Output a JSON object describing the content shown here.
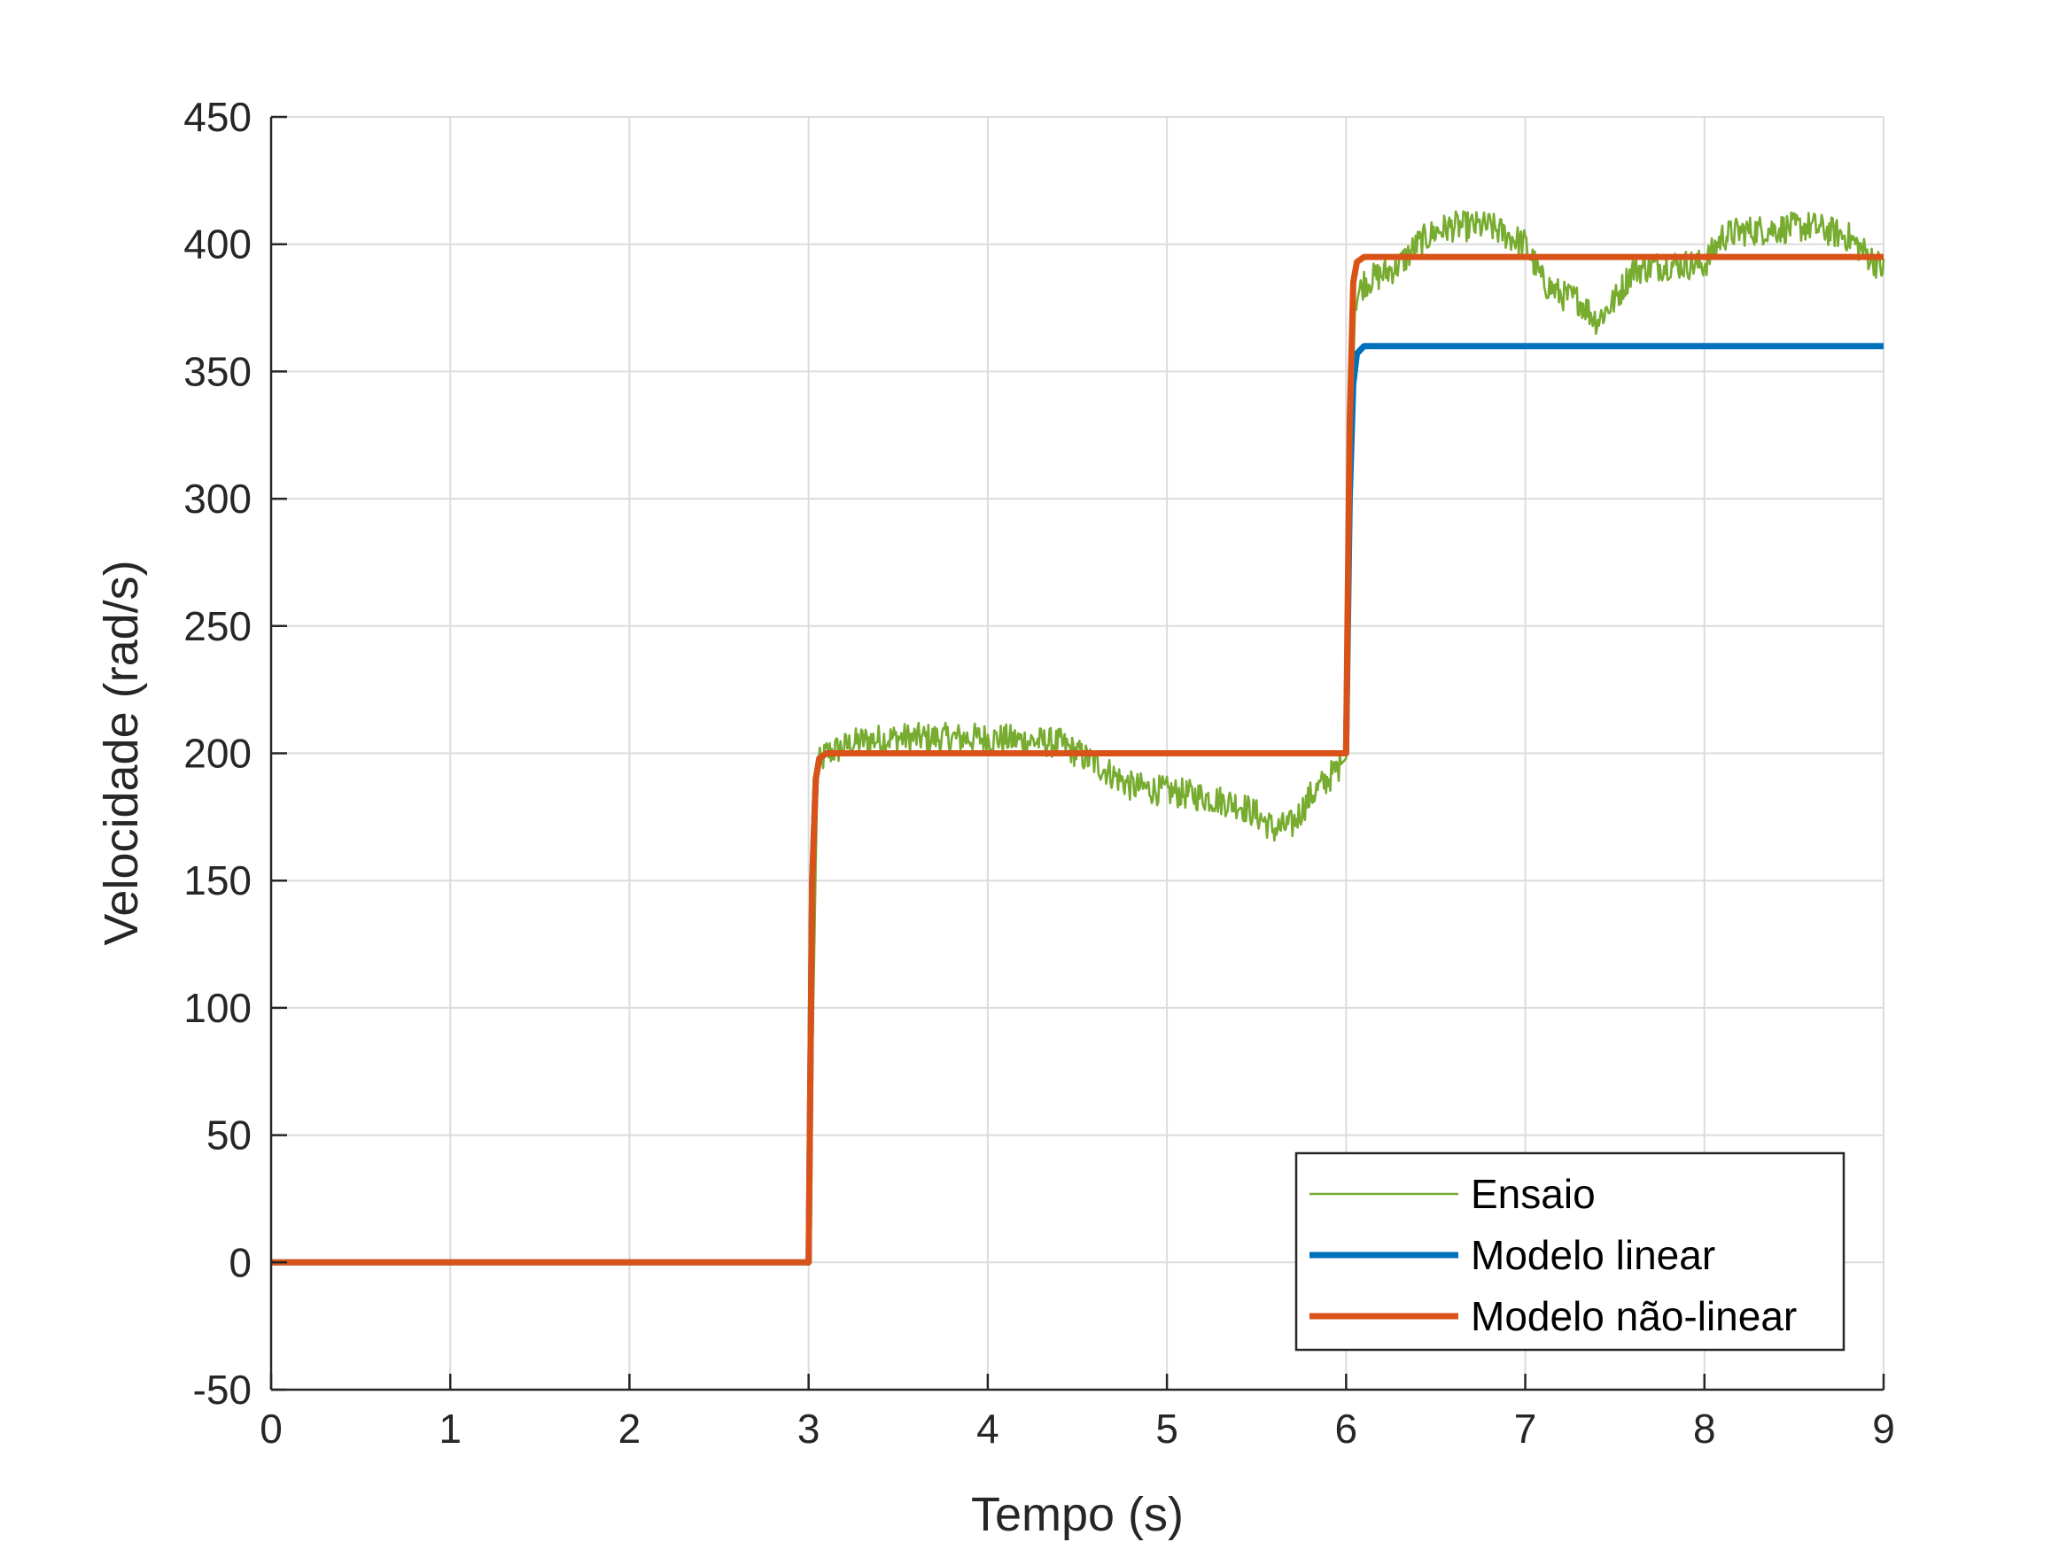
{
  "chart_data": {
    "type": "line",
    "title": "",
    "xlabel": "Tempo (s)",
    "ylabel": "Velocidade (rad/s)",
    "xlim": [
      0,
      9
    ],
    "ylim": [
      -50,
      450
    ],
    "xticks": [
      0,
      1,
      2,
      3,
      4,
      5,
      6,
      7,
      8,
      9
    ],
    "yticks": [
      -50,
      0,
      50,
      100,
      150,
      200,
      250,
      300,
      350,
      400,
      450
    ],
    "grid": true,
    "legend_position": "bottom-right",
    "series": [
      {
        "name": "Ensaio",
        "color": "#77AC30",
        "style": "thin-noisy",
        "x": [
          3.0,
          3.05,
          3.1,
          3.3,
          3.5,
          3.8,
          4.0,
          4.2,
          4.4,
          4.5,
          4.6,
          4.8,
          5.0,
          5.2,
          5.4,
          5.5,
          5.6,
          5.7,
          5.8,
          5.9,
          6.0,
          6.02,
          6.05,
          6.1,
          6.2,
          6.3,
          6.4,
          6.5,
          6.6,
          6.8,
          7.0,
          7.1,
          7.2,
          7.3,
          7.4,
          7.5,
          7.6,
          7.8,
          8.0,
          8.1,
          8.2,
          8.4,
          8.6,
          8.8,
          9.0
        ],
        "values": [
          0,
          195,
          200,
          205,
          206,
          206,
          206,
          205,
          204,
          200,
          196,
          187,
          185,
          183,
          180,
          176,
          170,
          172,
          183,
          190,
          198,
          300,
          378,
          385,
          388,
          392,
          400,
          405,
          407,
          407,
          400,
          385,
          380,
          378,
          370,
          378,
          390,
          392,
          392,
          403,
          405,
          406,
          407,
          403,
          390
        ]
      },
      {
        "name": "Modelo linear",
        "color": "#0072BD",
        "style": "thick",
        "x": [
          0,
          3.0,
          3.02,
          3.04,
          3.06,
          3.1,
          6.0,
          6.02,
          6.04,
          6.06,
          6.1,
          9.0
        ],
        "values": [
          0,
          0,
          150,
          190,
          198,
          200,
          200,
          300,
          345,
          357,
          360,
          360
        ]
      },
      {
        "name": "Modelo não-linear",
        "color": "#D95319",
        "style": "thick",
        "x": [
          0,
          3.0,
          3.02,
          3.04,
          3.06,
          3.1,
          6.0,
          6.02,
          6.04,
          6.06,
          6.1,
          9.0
        ],
        "values": [
          0,
          0,
          150,
          190,
          198,
          200,
          200,
          330,
          385,
          393,
          395,
          395
        ]
      }
    ]
  }
}
